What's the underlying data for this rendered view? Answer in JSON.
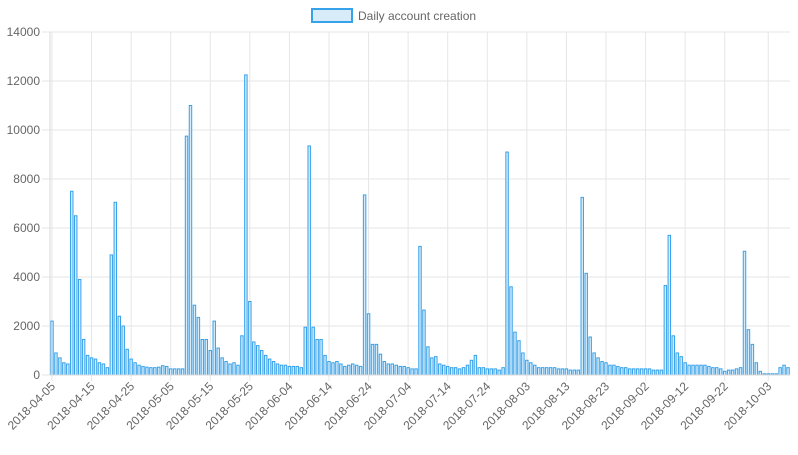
{
  "chart_data": {
    "type": "bar",
    "legend": {
      "label": "Daily account creation",
      "placement": "top-center"
    },
    "colors": {
      "bar_fill": "#d7ebf8",
      "bar_stroke": "#36a2eb",
      "grid": "#e6e6e6",
      "axis_text": "#666666",
      "legend_text": "#666666"
    },
    "x_start": "2018-04-05",
    "x_tick_labels": [
      "2018-04-05",
      "2018-04-15",
      "2018-04-25",
      "2018-05-05",
      "2018-05-15",
      "2018-05-25",
      "2018-06-04",
      "2018-06-14",
      "2018-06-24",
      "2018-07-04",
      "2018-07-14",
      "2018-07-24",
      "2018-08-03",
      "2018-08-13",
      "2018-08-23",
      "2018-09-02",
      "2018-09-12",
      "2018-09-22",
      "2018-10-03"
    ],
    "y_ticks": [
      0,
      2000,
      4000,
      6000,
      8000,
      10000,
      12000,
      14000
    ],
    "y_tick_labels": [
      "0",
      "2000",
      "4000",
      "6000",
      "8000",
      "10000",
      "12000",
      "14000"
    ],
    "ylim": [
      0,
      14000
    ],
    "grid": true,
    "values": [
      2200,
      900,
      700,
      500,
      450,
      7500,
      6500,
      3900,
      1450,
      800,
      700,
      650,
      500,
      450,
      300,
      4900,
      7050,
      2400,
      2000,
      1050,
      650,
      500,
      400,
      350,
      320,
      300,
      300,
      320,
      380,
      350,
      250,
      250,
      250,
      250,
      9750,
      11000,
      2850,
      2350,
      1450,
      1450,
      1000,
      2200,
      1100,
      700,
      550,
      450,
      500,
      400,
      1600,
      12250,
      3000,
      1350,
      1200,
      1000,
      800,
      650,
      550,
      450,
      400,
      400,
      350,
      350,
      350,
      300,
      1950,
      9350,
      1950,
      1450,
      1450,
      800,
      550,
      500,
      550,
      450,
      350,
      400,
      450,
      400,
      350,
      7350,
      2500,
      1250,
      1250,
      850,
      550,
      450,
      450,
      400,
      350,
      350,
      300,
      250,
      250,
      5250,
      2650,
      1150,
      700,
      750,
      450,
      400,
      350,
      300,
      300,
      250,
      300,
      400,
      600,
      800,
      300,
      300,
      250,
      250,
      250,
      200,
      300,
      9100,
      3600,
      1750,
      1400,
      900,
      600,
      500,
      400,
      300,
      300,
      300,
      300,
      300,
      250,
      250,
      250,
      200,
      200,
      200,
      7250,
      4150,
      1550,
      900,
      700,
      550,
      500,
      400,
      400,
      350,
      300,
      300,
      250,
      250,
      250,
      250,
      250,
      250,
      200,
      200,
      200,
      3650,
      5700,
      1600,
      900,
      750,
      500,
      400,
      400,
      400,
      400,
      400,
      350,
      300,
      300,
      250,
      150,
      200,
      200,
      250,
      300,
      5050,
      1850,
      1250,
      500,
      150,
      50,
      50,
      50,
      50,
      300,
      400,
      300
    ]
  }
}
